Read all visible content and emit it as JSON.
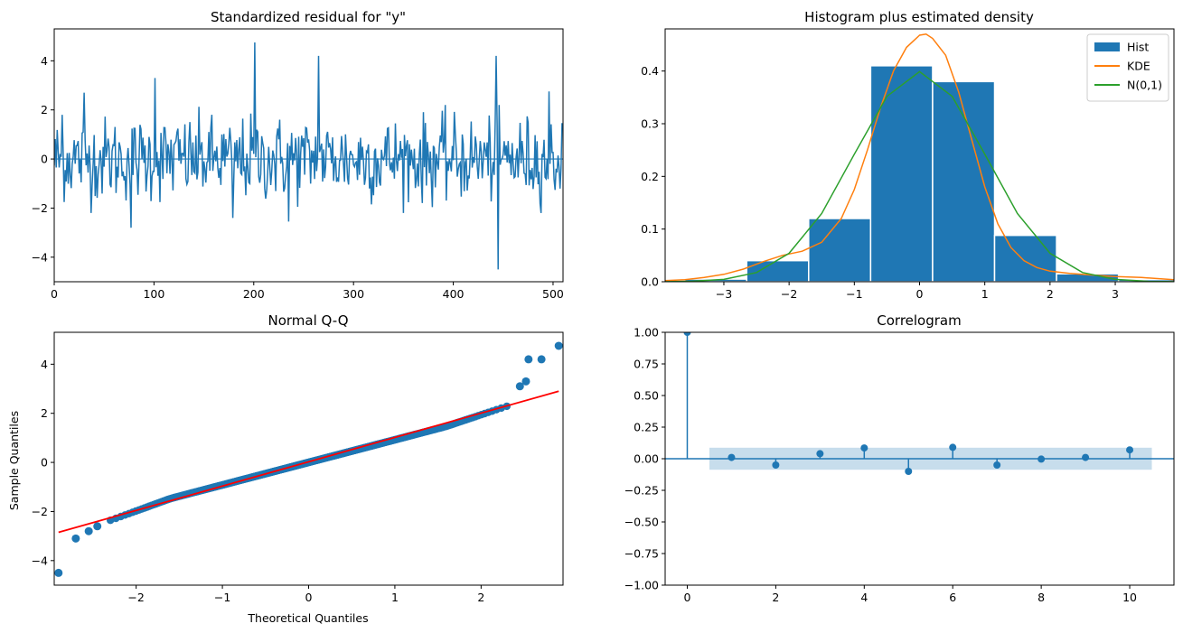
{
  "colors": {
    "blue": "#1f77b4",
    "orange": "#ff7f0e",
    "green": "#2ca02c",
    "red": "#ff0000",
    "band": "#1f77b4"
  },
  "chart_data": [
    {
      "type": "line",
      "title": "Standardized residual for \"y\"",
      "xlim": [
        0,
        510
      ],
      "ylim": [
        -5,
        5.3
      ],
      "xticks": [
        0,
        100,
        200,
        300,
        400,
        500
      ],
      "yticks": [
        -4,
        -2,
        0,
        2,
        4
      ],
      "n": 510,
      "zero_line": true,
      "annotated_points": [
        {
          "x": 8,
          "y": 1.8
        },
        {
          "x": 30,
          "y": 2.7
        },
        {
          "x": 77,
          "y": -2.8
        },
        {
          "x": 101,
          "y": 3.3
        },
        {
          "x": 179,
          "y": -2.4
        },
        {
          "x": 201,
          "y": 4.75
        },
        {
          "x": 235,
          "y": -2.55
        },
        {
          "x": 265,
          "y": 4.2
        },
        {
          "x": 443,
          "y": 4.2
        },
        {
          "x": 445,
          "y": -4.5
        },
        {
          "x": 496,
          "y": 2.75
        }
      ]
    },
    {
      "type": "bar",
      "title": "Histogram plus estimated density",
      "xlim": [
        -3.9,
        3.9
      ],
      "ylim": [
        0,
        0.48
      ],
      "xticks": [
        -3,
        -2,
        -1,
        0,
        1,
        2,
        3
      ],
      "yticks": [
        0.0,
        0.1,
        0.2,
        0.3,
        0.4
      ],
      "bins": [
        {
          "x0": -3.6,
          "x1": -2.65,
          "h": 0.005
        },
        {
          "x0": -2.65,
          "x1": -1.7,
          "h": 0.04
        },
        {
          "x0": -1.7,
          "x1": -0.75,
          "h": 0.12
        },
        {
          "x0": -0.75,
          "x1": 0.2,
          "h": 0.41
        },
        {
          "x0": 0.2,
          "x1": 1.15,
          "h": 0.38
        },
        {
          "x0": 1.15,
          "x1": 2.1,
          "h": 0.088
        },
        {
          "x0": 2.1,
          "x1": 3.05,
          "h": 0.015
        },
        {
          "x0": 3.05,
          "x1": 4.0,
          "h": 0.004
        }
      ],
      "series": [
        {
          "name": "KDE",
          "x": [
            -3.9,
            -3.6,
            -3.3,
            -3.0,
            -2.7,
            -2.4,
            -2.1,
            -1.8,
            -1.5,
            -1.2,
            -1.0,
            -0.8,
            -0.6,
            -0.4,
            -0.2,
            0.0,
            0.1,
            0.2,
            0.4,
            0.6,
            0.8,
            1.0,
            1.2,
            1.4,
            1.6,
            1.8,
            2.0,
            2.3,
            2.6,
            3.0,
            3.4,
            3.9
          ],
          "y": [
            0.002,
            0.004,
            0.008,
            0.014,
            0.024,
            0.038,
            0.05,
            0.058,
            0.075,
            0.12,
            0.175,
            0.25,
            0.33,
            0.4,
            0.445,
            0.468,
            0.47,
            0.462,
            0.43,
            0.36,
            0.27,
            0.18,
            0.11,
            0.065,
            0.04,
            0.027,
            0.02,
            0.016,
            0.013,
            0.01,
            0.008,
            0.004
          ]
        },
        {
          "name": "N(0,1)",
          "x": [
            -3.9,
            -3.5,
            -3.0,
            -2.5,
            -2.0,
            -1.5,
            -1.0,
            -0.5,
            0.0,
            0.5,
            1.0,
            1.5,
            2.0,
            2.5,
            3.0,
            3.5,
            3.9
          ],
          "y": [
            0.0002,
            0.0009,
            0.0044,
            0.0175,
            0.054,
            0.1295,
            0.242,
            0.352,
            0.399,
            0.352,
            0.242,
            0.1295,
            0.054,
            0.0175,
            0.0044,
            0.0009,
            0.0002
          ]
        }
      ],
      "legend": [
        "Hist",
        "KDE",
        "N(0,1)"
      ],
      "legend_position": "top-right"
    },
    {
      "type": "scatter",
      "title": "Normal Q-Q",
      "xlabel": "Theoretical Quantiles",
      "ylabel": "Sample Quantiles",
      "xlim": [
        -2.95,
        2.95
      ],
      "ylim": [
        -5,
        5.3
      ],
      "xticks": [
        -2,
        -1,
        0,
        1,
        2
      ],
      "yticks": [
        -4,
        -2,
        0,
        2,
        4
      ],
      "reference_line": {
        "x": [
          -2.9,
          2.9
        ],
        "y": [
          -2.85,
          2.9
        ]
      },
      "outliers": [
        {
          "x": -2.9,
          "y": -4.5
        },
        {
          "x": -2.7,
          "y": -3.1
        },
        {
          "x": -2.55,
          "y": -2.8
        },
        {
          "x": -2.45,
          "y": -2.6
        },
        {
          "x": 2.45,
          "y": 3.1
        },
        {
          "x": 2.52,
          "y": 3.3
        },
        {
          "x": 2.55,
          "y": 4.2
        },
        {
          "x": 2.7,
          "y": 4.2
        },
        {
          "x": 2.9,
          "y": 4.75
        }
      ]
    },
    {
      "type": "stem",
      "title": "Correlogram",
      "xlim": [
        -0.5,
        11.0
      ],
      "ylim": [
        -1.0,
        1.0
      ],
      "xticks": [
        0,
        2,
        4,
        6,
        8,
        10
      ],
      "yticks": [
        -1.0,
        -0.75,
        -0.5,
        -0.25,
        0.0,
        0.25,
        0.5,
        0.75,
        1.0
      ],
      "lags": [
        0,
        1,
        2,
        3,
        4,
        5,
        6,
        7,
        8,
        9,
        10
      ],
      "values": [
        1.0,
        0.01,
        -0.05,
        0.04,
        0.085,
        -0.1,
        0.09,
        -0.05,
        -0.003,
        0.01,
        0.07
      ],
      "confidence_band": {
        "x0": 0.5,
        "x1": 10.5,
        "lower": -0.087,
        "upper": 0.087
      }
    }
  ]
}
